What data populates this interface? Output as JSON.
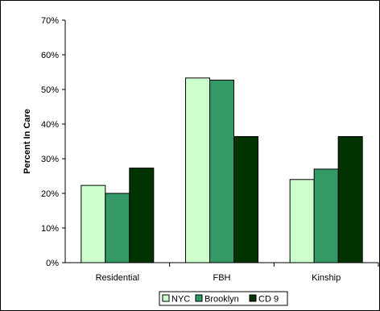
{
  "chart_data": {
    "type": "bar",
    "title": "",
    "xlabel": "",
    "ylabel": "Percent In Care",
    "categories": [
      "Residential",
      "FBH",
      "Kinship"
    ],
    "series": [
      {
        "name": "NYC",
        "values": [
          22.3,
          53.3,
          24.0
        ],
        "color": "#ccffcc"
      },
      {
        "name": "Brooklyn",
        "values": [
          20.0,
          52.7,
          27.0
        ],
        "color": "#339966"
      },
      {
        "name": "CD 9",
        "values": [
          27.3,
          36.4,
          36.4
        ],
        "color": "#003300"
      }
    ],
    "ylim": [
      0,
      70
    ],
    "yticks": [
      0,
      10,
      20,
      30,
      40,
      50,
      60,
      70
    ],
    "ytick_labels": [
      "0%",
      "10%",
      "20%",
      "30%",
      "40%",
      "50%",
      "60%",
      "70%"
    ],
    "grid": false,
    "legend_position": "bottom"
  }
}
